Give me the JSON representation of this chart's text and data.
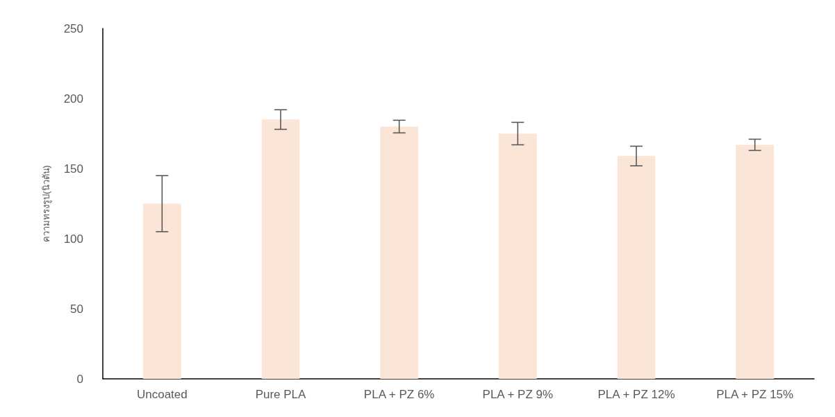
{
  "chart_data": {
    "type": "bar",
    "ylabel": "ความทรงรูป(นิวตัน)",
    "categories": [
      "Uncoated",
      "Pure PLA",
      "PLA + PZ 6%",
      "PLA + PZ 9%",
      "PLA + PZ 12%",
      "PLA + PZ 15%"
    ],
    "values": [
      125,
      185,
      180,
      175,
      159,
      167
    ],
    "errors": [
      20,
      7,
      4.5,
      8,
      7,
      4
    ],
    "color": "#fbe5d6",
    "ylim": [
      0,
      250
    ],
    "yticks": [
      0,
      50,
      100,
      150,
      200,
      250
    ],
    "grid": false
  }
}
